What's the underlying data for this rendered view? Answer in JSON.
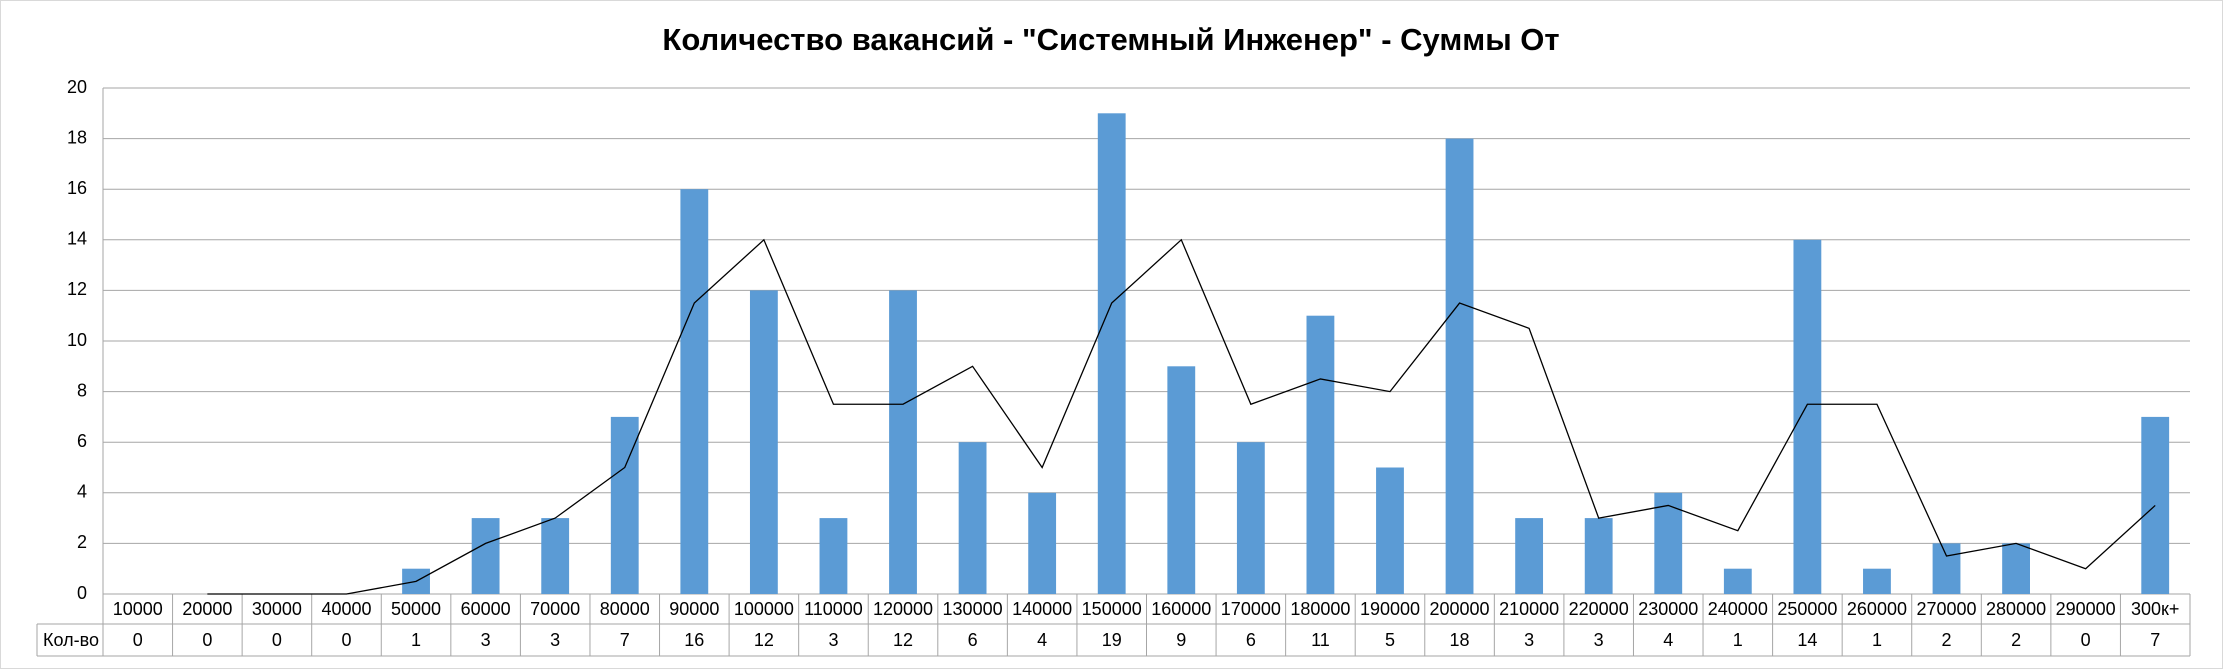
{
  "chart_data": {
    "type": "bar",
    "title": "Количество вакансий - \"Системный Инженер\" - Суммы От",
    "categories": [
      "10000",
      "20000",
      "30000",
      "40000",
      "50000",
      "60000",
      "70000",
      "80000",
      "90000",
      "100000",
      "110000",
      "120000",
      "130000",
      "140000",
      "150000",
      "160000",
      "170000",
      "180000",
      "190000",
      "200000",
      "210000",
      "220000",
      "230000",
      "240000",
      "250000",
      "260000",
      "270000",
      "280000",
      "290000",
      "300к+"
    ],
    "series": [
      {
        "name": "Кол-во",
        "color": "#5b9bd5",
        "values": [
          0,
          0,
          0,
          0,
          1,
          3,
          3,
          7,
          16,
          12,
          3,
          12,
          6,
          4,
          19,
          9,
          6,
          11,
          5,
          18,
          3,
          3,
          4,
          1,
          14,
          1,
          2,
          2,
          0,
          7
        ]
      },
      {
        "type": "line",
        "color": "#000000",
        "values": [
          null,
          0,
          0,
          0,
          0.5,
          2,
          3,
          5,
          11.5,
          14,
          7.5,
          7.5,
          9,
          5,
          11.5,
          14,
          7.5,
          8.5,
          8,
          11.5,
          10.5,
          3,
          3.5,
          2.5,
          7.5,
          7.5,
          1.5,
          2,
          1,
          3.5
        ]
      }
    ],
    "ylim": [
      0,
      20
    ],
    "yticks": [
      0,
      2,
      4,
      6,
      8,
      10,
      12,
      14,
      16,
      18,
      20
    ],
    "grid": true
  }
}
